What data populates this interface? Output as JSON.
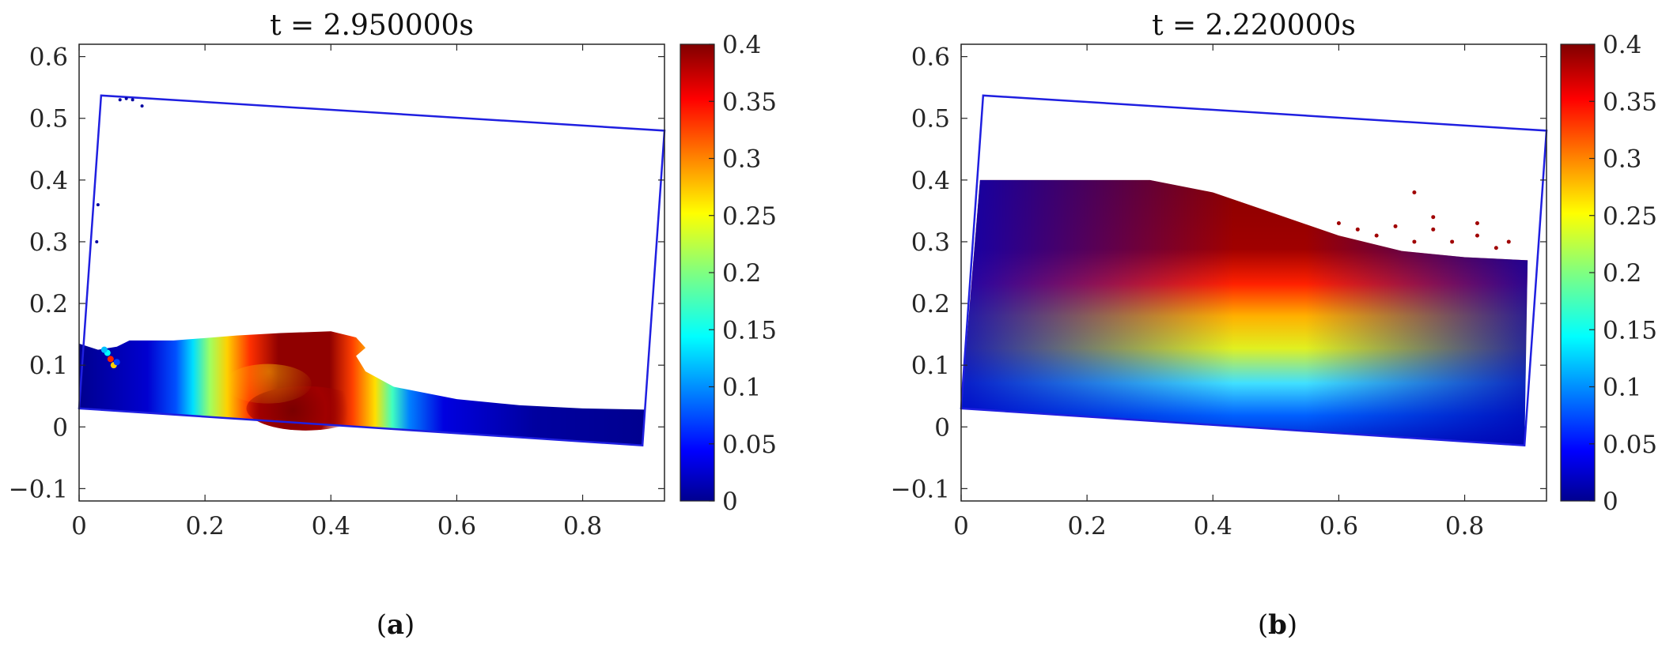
{
  "figure": {
    "captions": [
      "(a)",
      "(b)"
    ],
    "caption_letters": [
      "a",
      "b"
    ]
  },
  "chart_data": [
    {
      "type": "heatmap",
      "title": "t = 2.950000s",
      "xlabel": "",
      "ylabel": "",
      "xlim": [
        0,
        0.93
      ],
      "ylim": [
        -0.12,
        0.62
      ],
      "xticks": [
        0,
        0.2,
        0.4,
        0.6,
        0.8
      ],
      "xtick_labels": [
        "0",
        "0.2",
        "0.4",
        "0.6",
        "0.8"
      ],
      "yticks": [
        -0.1,
        0,
        0.1,
        0.2,
        0.3,
        0.4,
        0.5,
        0.6
      ],
      "ytick_labels": [
        "−0.1",
        "0",
        "0.1",
        "0.2",
        "0.3",
        "0.4",
        "0.5",
        "0.6"
      ],
      "grid": false,
      "colormap": "jet",
      "colorbar": {
        "range": [
          0,
          0.4
        ],
        "ticks": [
          0,
          0.05,
          0.1,
          0.15,
          0.2,
          0.25,
          0.3,
          0.35,
          0.4
        ],
        "tick_labels": [
          "0",
          "0.05",
          "0.1",
          "0.15",
          "0.2",
          "0.25",
          "0.3",
          "0.35",
          "0.4"
        ]
      },
      "tank_outline": {
        "color": "#1f1fe0",
        "corners": [
          [
            0.0,
            0.03
          ],
          [
            0.895,
            -0.03
          ],
          [
            0.93,
            0.48
          ],
          [
            0.035,
            0.537
          ]
        ]
      },
      "fluid_surface": [
        [
          0.0,
          0.135
        ],
        [
          0.03,
          0.125
        ],
        [
          0.06,
          0.13
        ],
        [
          0.08,
          0.14
        ],
        [
          0.15,
          0.14
        ],
        [
          0.25,
          0.148
        ],
        [
          0.32,
          0.152
        ],
        [
          0.4,
          0.155
        ],
        [
          0.44,
          0.145
        ],
        [
          0.455,
          0.128
        ],
        [
          0.44,
          0.115
        ],
        [
          0.455,
          0.09
        ],
        [
          0.5,
          0.065
        ],
        [
          0.6,
          0.045
        ],
        [
          0.7,
          0.035
        ],
        [
          0.8,
          0.03
        ],
        [
          0.9,
          0.028
        ]
      ],
      "field_description_bands": [
        {
          "x": 0.0,
          "value": 0.02
        },
        {
          "x": 0.15,
          "value": 0.06
        },
        {
          "x": 0.22,
          "value": 0.22
        },
        {
          "x": 0.28,
          "value": 0.33
        },
        {
          "x": 0.35,
          "value": 0.4
        },
        {
          "x": 0.42,
          "value": 0.32
        },
        {
          "x": 0.47,
          "value": 0.15
        },
        {
          "x": 0.55,
          "value": 0.03
        },
        {
          "x": 0.9,
          "value": 0.0
        }
      ]
    },
    {
      "type": "heatmap",
      "title": "t = 2.220000s",
      "xlabel": "",
      "ylabel": "",
      "xlim": [
        0,
        0.93
      ],
      "ylim": [
        -0.12,
        0.62
      ],
      "xticks": [
        0,
        0.2,
        0.4,
        0.6,
        0.8
      ],
      "xtick_labels": [
        "0",
        "0.2",
        "0.4",
        "0.6",
        "0.8"
      ],
      "yticks": [
        -0.1,
        0,
        0.1,
        0.2,
        0.3,
        0.4,
        0.5,
        0.6
      ],
      "ytick_labels": [
        "−0.1",
        "0",
        "0.1",
        "0.2",
        "0.3",
        "0.4",
        "0.5",
        "0.6"
      ],
      "grid": false,
      "colormap": "jet",
      "colorbar": {
        "range": [
          0,
          0.4
        ],
        "ticks": [
          0,
          0.05,
          0.1,
          0.15,
          0.2,
          0.25,
          0.3,
          0.35,
          0.4
        ],
        "tick_labels": [
          "0",
          "0.05",
          "0.1",
          "0.15",
          "0.2",
          "0.25",
          "0.3",
          "0.35",
          "0.4"
        ]
      },
      "tank_outline": {
        "color": "#1f1fe0",
        "corners": [
          [
            0.0,
            0.03
          ],
          [
            0.895,
            -0.03
          ],
          [
            0.93,
            0.48
          ],
          [
            0.035,
            0.537
          ]
        ]
      },
      "fluid_surface": [
        [
          0.03,
          0.4
        ],
        [
          0.1,
          0.4
        ],
        [
          0.2,
          0.4
        ],
        [
          0.3,
          0.4
        ],
        [
          0.4,
          0.38
        ],
        [
          0.5,
          0.345
        ],
        [
          0.6,
          0.31
        ],
        [
          0.7,
          0.285
        ],
        [
          0.8,
          0.275
        ],
        [
          0.9,
          0.27
        ]
      ],
      "field_description_bands": [
        {
          "depth_fraction": 0.0,
          "value": 0.4
        },
        {
          "depth_fraction": 0.35,
          "value": 0.3
        },
        {
          "depth_fraction": 0.6,
          "value": 0.2
        },
        {
          "depth_fraction": 1.0,
          "value": 0.05
        }
      ]
    }
  ]
}
